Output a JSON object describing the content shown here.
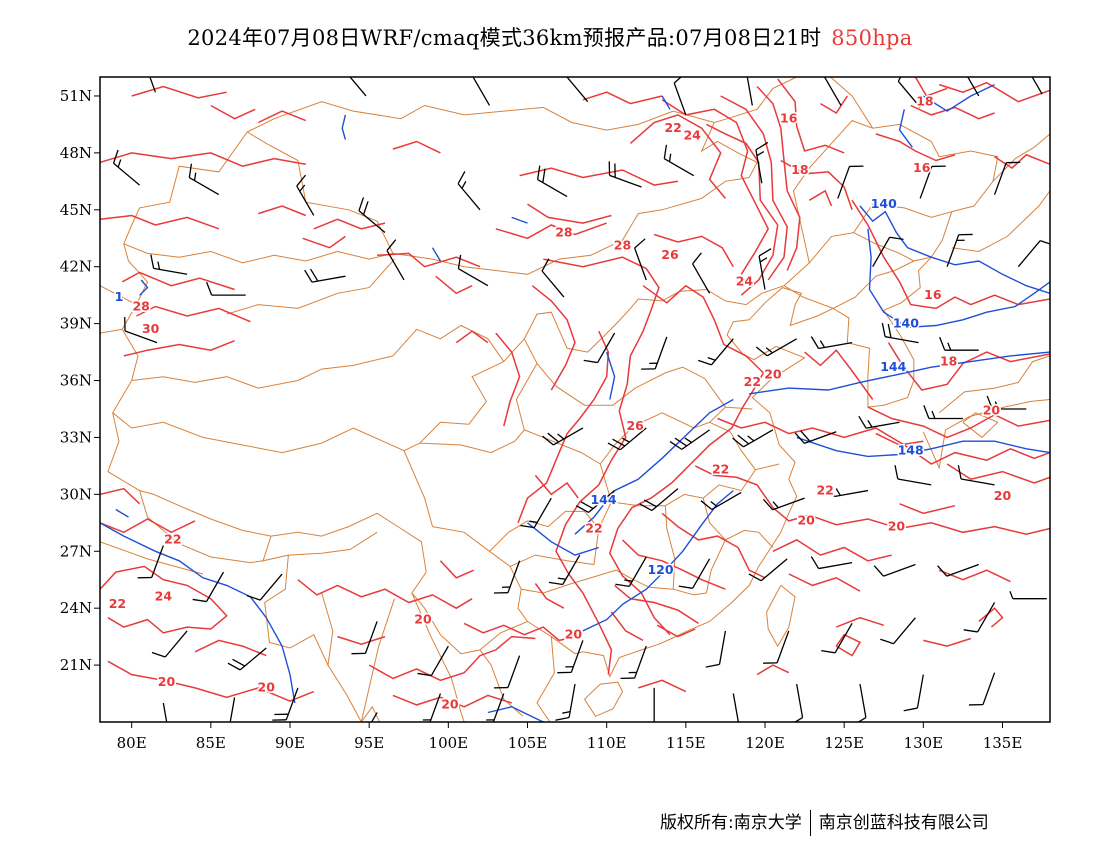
{
  "title": {
    "text": "2024年07月08日WRF/cmaq模式36km预报产品:07月08日21时",
    "level": "850hpa",
    "level_color": "#e8393b"
  },
  "map": {
    "lon_range": [
      78,
      138
    ],
    "lat_range": [
      18,
      52
    ],
    "lon_ticks": [
      {
        "value": 80,
        "label": "80E"
      },
      {
        "value": 85,
        "label": "85E"
      },
      {
        "value": 90,
        "label": "90E"
      },
      {
        "value": 95,
        "label": "95E"
      },
      {
        "value": 100,
        "label": "100E"
      },
      {
        "value": 105,
        "label": "105E"
      },
      {
        "value": 110,
        "label": "110E"
      },
      {
        "value": 115,
        "label": "115E"
      },
      {
        "value": 120,
        "label": "120E"
      },
      {
        "value": 125,
        "label": "125E"
      },
      {
        "value": 130,
        "label": "130E"
      },
      {
        "value": 135,
        "label": "135E"
      }
    ],
    "lat_ticks": [
      {
        "value": 21,
        "label": "21N"
      },
      {
        "value": 24,
        "label": "24N"
      },
      {
        "value": 27,
        "label": "27N"
      },
      {
        "value": 30,
        "label": "30N"
      },
      {
        "value": 33,
        "label": "33N"
      },
      {
        "value": 36,
        "label": "36N"
      },
      {
        "value": 39,
        "label": "39N"
      },
      {
        "value": 42,
        "label": "42N"
      },
      {
        "value": 45,
        "label": "45N"
      },
      {
        "value": 48,
        "label": "48N"
      },
      {
        "value": 51,
        "label": "51N"
      }
    ],
    "colors": {
      "temperature": "#e8393b",
      "geopotential": "#1f4fd6",
      "borders": "#d9823b",
      "wind_barbs": "#000000"
    },
    "temperature_labels": [
      {
        "text": "22",
        "lon": 114.2,
        "lat": 49.1
      },
      {
        "text": "24",
        "lon": 115.4,
        "lat": 48.7
      },
      {
        "text": "16",
        "lon": 121.5,
        "lat": 49.6
      },
      {
        "text": "18",
        "lon": 130.1,
        "lat": 50.5
      },
      {
        "text": "18",
        "lon": 122.2,
        "lat": 46.9
      },
      {
        "text": "16",
        "lon": 129.9,
        "lat": 47.0
      },
      {
        "text": "28",
        "lon": 107.3,
        "lat": 43.6
      },
      {
        "text": "28",
        "lon": 111.0,
        "lat": 42.9
      },
      {
        "text": "26",
        "lon": 114.0,
        "lat": 42.4
      },
      {
        "text": "24",
        "lon": 118.7,
        "lat": 41.0
      },
      {
        "text": "16",
        "lon": 130.6,
        "lat": 40.3
      },
      {
        "text": "28",
        "lon": 80.6,
        "lat": 39.7
      },
      {
        "text": "30",
        "lon": 81.2,
        "lat": 38.5
      },
      {
        "text": "20",
        "lon": 120.5,
        "lat": 36.1
      },
      {
        "text": "18",
        "lon": 131.6,
        "lat": 36.8
      },
      {
        "text": "22",
        "lon": 119.2,
        "lat": 35.7
      },
      {
        "text": "20",
        "lon": 134.3,
        "lat": 34.2
      },
      {
        "text": "26",
        "lon": 111.8,
        "lat": 33.4
      },
      {
        "text": "22",
        "lon": 117.2,
        "lat": 31.1
      },
      {
        "text": "22",
        "lon": 123.8,
        "lat": 30.0
      },
      {
        "text": "20",
        "lon": 135.0,
        "lat": 29.7
      },
      {
        "text": "22",
        "lon": 109.2,
        "lat": 28.0
      },
      {
        "text": "20",
        "lon": 122.6,
        "lat": 28.4
      },
      {
        "text": "20",
        "lon": 128.3,
        "lat": 28.1
      },
      {
        "text": "22",
        "lon": 82.6,
        "lat": 27.4
      },
      {
        "text": "24",
        "lon": 82.0,
        "lat": 24.4
      },
      {
        "text": "22",
        "lon": 79.1,
        "lat": 24.0
      },
      {
        "text": "20",
        "lon": 98.4,
        "lat": 23.2
      },
      {
        "text": "20",
        "lon": 107.9,
        "lat": 22.4
      },
      {
        "text": "20",
        "lon": 82.2,
        "lat": 19.9
      },
      {
        "text": "20",
        "lon": 88.5,
        "lat": 19.6
      },
      {
        "text": "20",
        "lon": 100.1,
        "lat": 18.7
      }
    ],
    "height_labels": [
      {
        "text": "140",
        "lon": 127.5,
        "lat": 45.1
      },
      {
        "text": "140",
        "lon": 128.9,
        "lat": 38.8
      },
      {
        "text": "144",
        "lon": 128.1,
        "lat": 36.5
      },
      {
        "text": "148",
        "lon": 129.2,
        "lat": 32.1
      },
      {
        "text": "144",
        "lon": 109.8,
        "lat": 29.5
      },
      {
        "text": "120",
        "lon": 113.4,
        "lat": 25.8
      },
      {
        "text": "1",
        "lon": 79.2,
        "lat": 40.2
      }
    ]
  },
  "footer": {
    "left": "版权所有:南京大学",
    "right": "南京创蓝科技有限公司"
  }
}
